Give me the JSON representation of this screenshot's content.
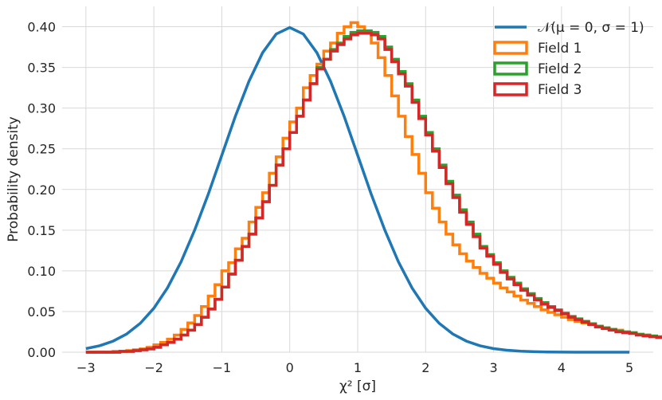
{
  "chart_data": {
    "type": "line",
    "xlabel": "χ² [σ]",
    "ylabel": "Probability density",
    "xlim": [
      -3.35,
      5.35
    ],
    "ylim": [
      0,
      0.425
    ],
    "xticks": [
      -3,
      -2,
      -1,
      0,
      1,
      2,
      3,
      4,
      5
    ],
    "xtick_labels": [
      "−3",
      "−2",
      "−1",
      "0",
      "1",
      "2",
      "3",
      "4",
      "5"
    ],
    "yticks": [
      0,
      0.05,
      0.1,
      0.15,
      0.2,
      0.25,
      0.3,
      0.35,
      0.4
    ],
    "ytick_labels": [
      "0.00",
      "0.05",
      "0.10",
      "0.15",
      "0.20",
      "0.25",
      "0.30",
      "0.35",
      "0.40"
    ],
    "grid": true,
    "legend_position": "top-right",
    "series": [
      {
        "name": "𝒩(μ = 0, σ = 1)",
        "kind": "line",
        "color": "#1f77b4",
        "x": [
          -3,
          -2.8,
          -2.6,
          -2.4,
          -2.2,
          -2,
          -1.8,
          -1.6,
          -1.4,
          -1.2,
          -1,
          -0.8,
          -0.6,
          -0.4,
          -0.2,
          0,
          0.2,
          0.4,
          0.6,
          0.8,
          1,
          1.2,
          1.4,
          1.6,
          1.8,
          2,
          2.2,
          2.4,
          2.6,
          2.8,
          3,
          3.2,
          3.4,
          3.6,
          3.8,
          4,
          4.2,
          4.4,
          4.6,
          4.8,
          5
        ],
        "y": [
          0.0044,
          0.0079,
          0.0136,
          0.0224,
          0.0355,
          0.054,
          0.079,
          0.111,
          0.15,
          0.194,
          0.242,
          0.29,
          0.333,
          0.368,
          0.391,
          0.399,
          0.391,
          0.368,
          0.333,
          0.29,
          0.242,
          0.194,
          0.15,
          0.111,
          0.079,
          0.054,
          0.0355,
          0.0224,
          0.0136,
          0.0079,
          0.0044,
          0.0024,
          0.0012,
          0.0006,
          0.0003,
          0.0001,
          0,
          0,
          0,
          0,
          0
        ]
      },
      {
        "name": "Field 1",
        "kind": "step",
        "color": "#ff7f0e",
        "bin_start": -3,
        "bin_width": 0.1,
        "values": [
          0.0,
          0.0,
          0.0,
          0.0,
          0.001,
          0.001,
          0.002,
          0.003,
          0.004,
          0.006,
          0.009,
          0.012,
          0.016,
          0.021,
          0.028,
          0.036,
          0.045,
          0.056,
          0.069,
          0.083,
          0.1,
          0.11,
          0.127,
          0.14,
          0.16,
          0.178,
          0.196,
          0.22,
          0.24,
          0.263,
          0.283,
          0.3,
          0.325,
          0.34,
          0.354,
          0.37,
          0.38,
          0.392,
          0.4,
          0.405,
          0.4,
          0.392,
          0.38,
          0.362,
          0.34,
          0.315,
          0.29,
          0.265,
          0.243,
          0.22,
          0.196,
          0.177,
          0.16,
          0.145,
          0.132,
          0.121,
          0.112,
          0.104,
          0.097,
          0.091,
          0.085,
          0.079,
          0.074,
          0.069,
          0.064,
          0.06,
          0.056,
          0.052,
          0.049,
          0.046,
          0.043,
          0.04,
          0.038,
          0.036,
          0.034,
          0.032,
          0.03,
          0.028,
          0.027,
          0.025,
          0.024,
          0.022,
          0.021,
          0.02,
          0.019,
          0.018,
          0.017,
          0.016,
          0.015,
          0.014,
          0.013,
          0.012,
          0.011,
          0.011,
          0.01,
          0.01,
          0.009,
          0.009,
          0.008,
          0.008,
          0.008
        ]
      },
      {
        "name": "Field 2",
        "kind": "step",
        "color": "#2ca02c",
        "bin_start": -3,
        "bin_width": 0.1,
        "values": [
          0.0,
          0.0,
          0.0,
          0.0,
          0.0,
          0.001,
          0.001,
          0.002,
          0.003,
          0.004,
          0.006,
          0.009,
          0.012,
          0.016,
          0.021,
          0.027,
          0.034,
          0.043,
          0.053,
          0.065,
          0.08,
          0.096,
          0.113,
          0.13,
          0.145,
          0.165,
          0.185,
          0.205,
          0.23,
          0.25,
          0.27,
          0.29,
          0.31,
          0.33,
          0.35,
          0.36,
          0.372,
          0.38,
          0.388,
          0.393,
          0.395,
          0.395,
          0.393,
          0.388,
          0.375,
          0.36,
          0.345,
          0.33,
          0.31,
          0.29,
          0.27,
          0.25,
          0.23,
          0.21,
          0.193,
          0.175,
          0.16,
          0.145,
          0.13,
          0.12,
          0.11,
          0.1,
          0.092,
          0.085,
          0.078,
          0.072,
          0.066,
          0.061,
          0.056,
          0.052,
          0.048,
          0.044,
          0.041,
          0.038,
          0.035,
          0.032,
          0.03,
          0.028,
          0.026,
          0.025,
          0.024,
          0.022,
          0.021,
          0.02,
          0.019,
          0.018,
          0.017,
          0.016,
          0.015,
          0.014,
          0.013,
          0.012,
          0.011,
          0.011,
          0.01,
          0.01,
          0.009,
          0.009,
          0.008,
          0.008,
          0.008
        ]
      },
      {
        "name": "Field 3",
        "kind": "step",
        "color": "#d62728",
        "bin_start": -3,
        "bin_width": 0.1,
        "values": [
          0.0,
          0.0,
          0.0,
          0.0,
          0.0,
          0.001,
          0.001,
          0.002,
          0.003,
          0.004,
          0.006,
          0.009,
          0.012,
          0.016,
          0.021,
          0.027,
          0.034,
          0.043,
          0.053,
          0.065,
          0.08,
          0.096,
          0.113,
          0.13,
          0.145,
          0.165,
          0.185,
          0.205,
          0.23,
          0.25,
          0.27,
          0.29,
          0.31,
          0.33,
          0.348,
          0.36,
          0.37,
          0.378,
          0.385,
          0.39,
          0.392,
          0.392,
          0.39,
          0.385,
          0.372,
          0.357,
          0.342,
          0.327,
          0.307,
          0.287,
          0.267,
          0.247,
          0.227,
          0.207,
          0.19,
          0.172,
          0.157,
          0.142,
          0.128,
          0.118,
          0.108,
          0.098,
          0.09,
          0.083,
          0.076,
          0.07,
          0.064,
          0.059,
          0.055,
          0.051,
          0.047,
          0.043,
          0.04,
          0.037,
          0.034,
          0.031,
          0.029,
          0.027,
          0.025,
          0.024,
          0.023,
          0.021,
          0.02,
          0.019,
          0.018,
          0.017,
          0.016,
          0.015,
          0.014,
          0.013,
          0.012,
          0.011,
          0.011,
          0.01,
          0.01,
          0.009,
          0.009,
          0.008,
          0.008,
          0.007,
          0.007
        ]
      }
    ]
  }
}
